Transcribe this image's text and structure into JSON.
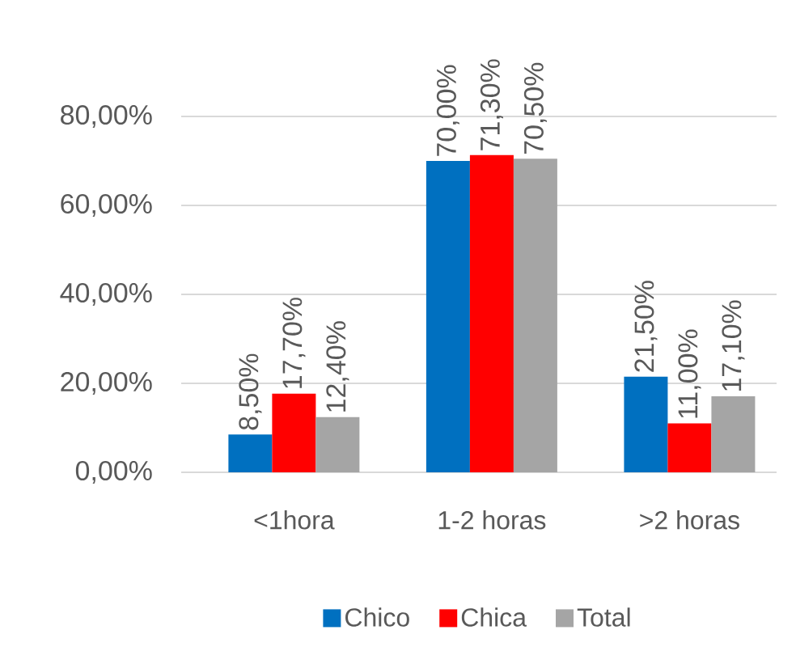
{
  "chart_data": {
    "type": "bar",
    "categories": [
      "<1hora",
      "1-2 horas",
      ">2 horas"
    ],
    "series": [
      {
        "name": "Chico",
        "color": "#0070c0",
        "values": [
          8.5,
          70,
          21.5
        ],
        "value_labels": [
          "8,50%",
          "70,00%",
          "21,50%"
        ]
      },
      {
        "name": "Chica",
        "color": "#ff0000",
        "values": [
          17.7,
          71.3,
          11
        ],
        "value_labels": [
          "17,70%",
          "71,30%",
          "11,00%"
        ]
      },
      {
        "name": "Total",
        "color": "#a5a5a5",
        "values": [
          12.4,
          70.5,
          17.1
        ],
        "value_labels": [
          "12,40%",
          "70,50%",
          "17,10%"
        ]
      }
    ],
    "ylim": [
      0,
      80
    ],
    "yticks": [
      {
        "value": 0,
        "label": "0,00%"
      },
      {
        "value": 20,
        "label": "20,00%"
      },
      {
        "value": 40,
        "label": "40,00%"
      },
      {
        "value": 60,
        "label": "60,00%"
      },
      {
        "value": 80,
        "label": "80,00%"
      }
    ],
    "grid": "y",
    "legend": "bottom"
  }
}
